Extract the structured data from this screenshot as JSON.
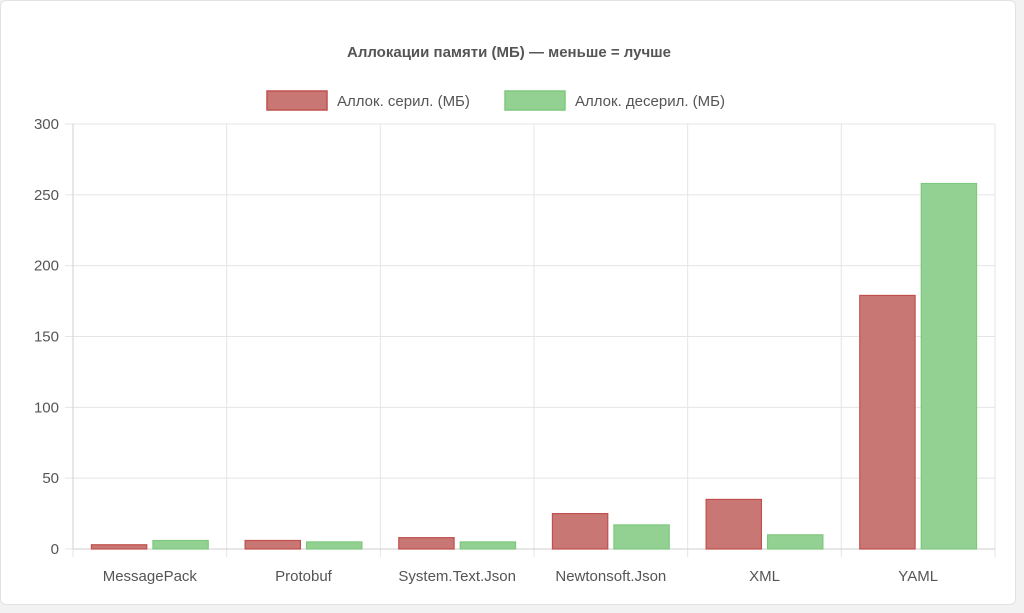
{
  "chart_data": {
    "type": "bar",
    "title": "Аллокации памяти (МБ) — меньше = лучше",
    "categories": [
      "MessagePack",
      "Protobuf",
      "System.Text.Json",
      "Newtonsoft.Json",
      "XML",
      "YAML"
    ],
    "series": [
      {
        "name": "Аллок. серил. (МБ)",
        "values": [
          3,
          6,
          8,
          25,
          35,
          179
        ],
        "color": "#c0504d"
      },
      {
        "name": "Аллок. десерил. (МБ)",
        "values": [
          6,
          5,
          5,
          17,
          10,
          258
        ],
        "color": "#7ec87e"
      }
    ],
    "ylim": [
      0,
      300
    ],
    "yticks": [
      0,
      50,
      100,
      150,
      200,
      250,
      300
    ],
    "grid": true,
    "legend_position": "top-center"
  }
}
